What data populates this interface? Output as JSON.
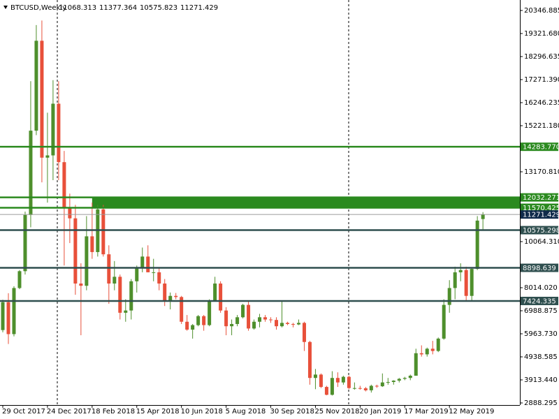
{
  "chart_data": {
    "type": "candlestick",
    "title": "BTCUSD,Weekly",
    "categories": [
      "29 Oct 2017",
      null,
      null,
      null,
      null,
      null,
      null,
      null,
      "24 Dec 2017",
      null,
      null,
      null,
      null,
      null,
      null,
      null,
      "18 Feb 2018",
      null,
      null,
      null,
      null,
      null,
      null,
      null,
      "15 Apr 2018",
      null,
      null,
      null,
      null,
      null,
      null,
      null,
      "10 Jun 2018",
      null,
      null,
      null,
      null,
      null,
      null,
      null,
      "5 Aug 2018",
      null,
      null,
      null,
      null,
      null,
      null,
      null,
      "30 Sep 2018",
      null,
      null,
      null,
      null,
      null,
      null,
      null,
      "25 Nov 2018",
      null,
      null,
      null,
      null,
      null,
      null,
      null,
      "20 Jan 2019",
      null,
      null,
      null,
      null,
      null,
      null,
      null,
      "17 Mar 2019",
      null,
      null,
      null,
      null,
      null,
      null,
      null,
      "12 May 2019",
      null,
      null,
      null,
      null,
      null,
      null
    ],
    "open": [
      6130,
      7370,
      5950,
      8000,
      8750,
      11250,
      15000,
      19000,
      13800,
      13900,
      16200,
      13600,
      11600,
      11100,
      8200,
      8100,
      10300,
      9600,
      11500,
      9500,
      8200,
      8500,
      6900,
      7000,
      8300,
      8900,
      9400,
      8700,
      8700,
      8200,
      7400,
      7650,
      7600,
      6500,
      6150,
      6350,
      6750,
      6350,
      7400,
      8200,
      7000,
      6300,
      6400,
      6700,
      7250,
      6200,
      6500,
      6700,
      6600,
      6580,
      6300,
      6450,
      6400,
      6380,
      6450,
      5600,
      4000,
      4150,
      3600,
      3250,
      4000,
      3800,
      4050,
      3550,
      3550,
      3540,
      3450,
      3650,
      3630,
      3800,
      3820,
      3880,
      3960,
      4000,
      4100,
      5100,
      5050,
      5300,
      5200,
      5750,
      7250,
      8000,
      8700,
      8800,
      7650,
      8850,
      11068.313
    ],
    "high": [
      7480,
      7770,
      8080,
      8800,
      11400,
      17200,
      19700,
      19900,
      15800,
      17250,
      17200,
      14100,
      12200,
      11700,
      9100,
      11200,
      11800,
      11700,
      11700,
      9900,
      9200,
      8600,
      7500,
      8400,
      9000,
      9800,
      9900,
      9300,
      8900,
      8400,
      7800,
      7780,
      7650,
      6800,
      6400,
      6800,
      6800,
      7500,
      8500,
      8300,
      7150,
      6600,
      6800,
      7300,
      7400,
      6600,
      6850,
      6800,
      6700,
      6700,
      7400,
      6500,
      6450,
      6600,
      6500,
      5650,
      4400,
      4200,
      3650,
      4300,
      4250,
      4100,
      4100,
      3800,
      3650,
      3600,
      3700,
      3700,
      4200,
      4000,
      3900,
      4000,
      4050,
      4150,
      5300,
      5450,
      5350,
      5650,
      5800,
      7500,
      8350,
      8950,
      9100,
      8950,
      8900,
      11200,
      11377.364
    ],
    "low": [
      6030,
      5510,
      5850,
      7950,
      8600,
      10700,
      14800,
      12700,
      11800,
      12800,
      12800,
      9000,
      10000,
      7700,
      5900,
      7900,
      9300,
      9400,
      9400,
      7300,
      7900,
      6600,
      6500,
      6600,
      7800,
      8700,
      8700,
      8300,
      7900,
      7200,
      7050,
      7500,
      6400,
      6100,
      5750,
      6300,
      6100,
      6300,
      7400,
      6900,
      5900,
      5900,
      6300,
      6650,
      6100,
      6150,
      6250,
      6500,
      6450,
      6150,
      6250,
      6350,
      6250,
      6350,
      5200,
      3700,
      3500,
      3550,
      3230,
      3220,
      3600,
      3700,
      3500,
      3480,
      3480,
      3400,
      3350,
      3560,
      3600,
      3700,
      3700,
      3800,
      3900,
      3900,
      4100,
      4950,
      4950,
      5050,
      5150,
      5700,
      6900,
      7500,
      8300,
      7450,
      7450,
      8800,
      10575.823
    ],
    "close": [
      7370,
      5950,
      8000,
      8750,
      11250,
      15000,
      19000,
      13800,
      13900,
      16200,
      13600,
      11600,
      11100,
      8200,
      8100,
      10300,
      9600,
      11500,
      9500,
      8200,
      8500,
      6900,
      7000,
      8300,
      8900,
      9400,
      8700,
      8700,
      8200,
      7400,
      7650,
      7600,
      6500,
      6150,
      6350,
      6750,
      6350,
      7400,
      8200,
      7000,
      6300,
      6400,
      6700,
      7250,
      6200,
      6500,
      6700,
      6600,
      6580,
      6300,
      6450,
      6400,
      6380,
      6450,
      5600,
      4000,
      4150,
      3600,
      3250,
      4000,
      3800,
      4050,
      3550,
      3550,
      3540,
      3450,
      3650,
      3630,
      3800,
      3820,
      3880,
      3960,
      4000,
      4100,
      5100,
      5050,
      5300,
      5200,
      5750,
      7250,
      8000,
      8700,
      8800,
      7650,
      8850,
      11000,
      11271.429
    ],
    "up_color": "#4e8f2c",
    "down_color": "#e8503a",
    "ylim": [
      2795,
      20813
    ],
    "yticks": [
      20346.885,
      {
        "value": 19321.68,
        "label": "19321.680"
      },
      18296.635,
      {
        "value": 17271.39,
        "label": "17271.390"
      },
      16246.235,
      {
        "value": 15221.18,
        "label": "15221.180"
      },
      {
        "value": 13170.81,
        "label": "13170.810"
      },
      {
        "value": 10064.31,
        "label": "10064.310"
      },
      {
        "value": 8014.02,
        "label": "8014.020"
      },
      6988.875,
      {
        "value": 5963.73,
        "label": "5963.730"
      },
      4938.585,
      {
        "value": 3913.44,
        "label": "3913.440"
      },
      2888.295
    ],
    "levels": [
      {
        "value": 14283.77,
        "label": "14283.770",
        "color": "#2b8a1f"
      },
      {
        "value": 12032.271,
        "color": "#2b8a1f"
      },
      {
        "value": 11570.425,
        "color": "#2b8a1f"
      },
      {
        "value": 10575.298,
        "color": "#2f4f4f"
      },
      {
        "value": 8898.639,
        "color": "#2f4f4f"
      },
      {
        "value": 7424.335,
        "color": "#2f4f4f"
      }
    ],
    "grid": false
  }
}
